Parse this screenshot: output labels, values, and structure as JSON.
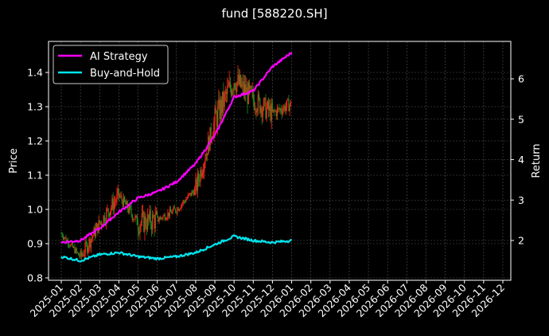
{
  "chart_data": {
    "type": "line",
    "title": "fund [588220.SH]",
    "xlabel": "",
    "ylabel": "Price",
    "ylabel_right": "Return",
    "ylim": [
      0.79,
      1.49
    ],
    "ylim_right": [
      1.0,
      6.9
    ],
    "yticks": [
      "0.8",
      "0.9",
      "1.0",
      "1.1",
      "1.2",
      "1.3",
      "1.4"
    ],
    "yticks_right": [
      "2",
      "3",
      "4",
      "5",
      "6"
    ],
    "grid": true,
    "legend_position": "upper left",
    "x_ticks": [
      "2025-01",
      "2025-02",
      "2025-03",
      "2025-04",
      "2025-05",
      "2025-06",
      "2025-07",
      "2025-08",
      "2025-09",
      "2025-10",
      "2025-11",
      "2025-12",
      "2026-01",
      "2026-02",
      "2026-03",
      "2026-04",
      "2026-05",
      "2026-06",
      "2026-07",
      "2026-08",
      "2026-09",
      "2026-10",
      "2026-11",
      "2026-12"
    ],
    "x": [
      "2025-01",
      "2025-02",
      "2025-03",
      "2025-04",
      "2025-05",
      "2025-06",
      "2025-07",
      "2025-08",
      "2025-09",
      "2025-10",
      "2025-11",
      "2025-12",
      "2026-01"
    ],
    "price_candles": {
      "name": "Price (candlestick, red up / green down)",
      "axis": "left",
      "close": [
        0.93,
        0.86,
        0.96,
        1.04,
        0.96,
        0.97,
        1.0,
        1.06,
        1.26,
        1.38,
        1.32,
        1.28,
        1.31
      ],
      "high": [
        0.96,
        0.95,
        1.02,
        1.07,
        1.02,
        1.0,
        1.02,
        1.15,
        1.35,
        1.46,
        1.4,
        1.33,
        1.33
      ],
      "low": [
        0.9,
        0.83,
        0.88,
        0.97,
        0.83,
        0.93,
        0.95,
        0.98,
        1.12,
        1.25,
        1.22,
        1.22,
        1.28
      ]
    },
    "series": [
      {
        "name": "AI Strategy",
        "axis": "right",
        "color": "#ff00ff",
        "values": [
          1.95,
          2.0,
          2.3,
          2.7,
          3.05,
          3.2,
          3.45,
          3.9,
          4.6,
          5.55,
          5.7,
          6.3,
          6.65
        ]
      },
      {
        "name": "Buy-and-Hold",
        "axis": "right",
        "color": "#00e5ee",
        "values": [
          1.6,
          1.5,
          1.65,
          1.7,
          1.6,
          1.55,
          1.6,
          1.7,
          1.9,
          2.1,
          2.0,
          1.95,
          2.0
        ]
      }
    ]
  },
  "legend": {
    "items": [
      {
        "label": "AI Strategy",
        "color": "#ff00ff"
      },
      {
        "label": "Buy-and-Hold",
        "color": "#00e5ee"
      }
    ]
  },
  "colors": {
    "up": "#ff2a1a",
    "down": "#1f8f1f",
    "grid": "#555555",
    "background": "#000000"
  }
}
